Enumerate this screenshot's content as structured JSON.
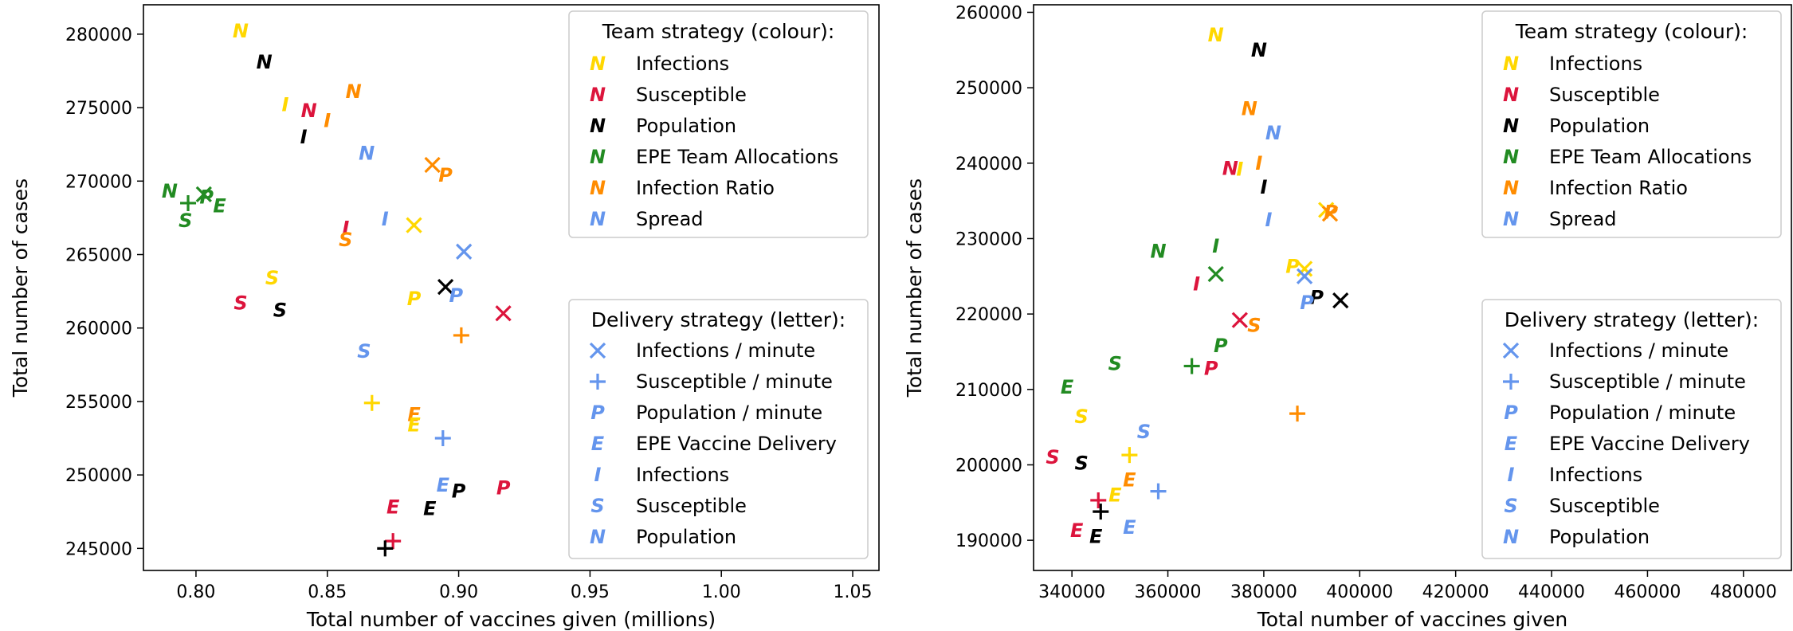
{
  "colors": {
    "Infections": "#ffd700",
    "Susceptible": "#dc143c",
    "Population": "#000000",
    "EPE Team Allocations": "#228b22",
    "Infection Ratio": "#ff8c00",
    "Spread": "#6495ed"
  },
  "legend_team": {
    "title": "Team strategy (colour):",
    "symbol": "N",
    "entries": [
      {
        "label": "Infections",
        "color": "#ffd700"
      },
      {
        "label": "Susceptible",
        "color": "#dc143c"
      },
      {
        "label": "Population",
        "color": "#000000"
      },
      {
        "label": "EPE Team Allocations",
        "color": "#228b22"
      },
      {
        "label": "Infection Ratio",
        "color": "#ff8c00"
      },
      {
        "label": "Spread",
        "color": "#6495ed"
      }
    ]
  },
  "legend_delivery": {
    "title": "Delivery strategy (letter):",
    "color": "#6495ed",
    "entries": [
      {
        "label": "Infections / minute",
        "marker": "x"
      },
      {
        "label": "Susceptible / minute",
        "marker": "+"
      },
      {
        "label": "Population / minute",
        "marker": "P"
      },
      {
        "label": "EPE Vaccine Delivery",
        "marker": "E"
      },
      {
        "label": "Infections",
        "marker": "I"
      },
      {
        "label": "Susceptible",
        "marker": "S"
      },
      {
        "label": "Population",
        "marker": "N"
      }
    ]
  },
  "chart_data": [
    {
      "type": "scatter",
      "title": "",
      "xlabel": "Total number of vaccines given (millions)",
      "ylabel": "Total number of cases",
      "xlim": [
        0.78,
        1.06
      ],
      "ylim": [
        243500,
        282000
      ],
      "xticks": [
        0.8,
        0.85,
        0.9,
        0.95,
        1.0,
        1.05
      ],
      "xtick_labels": [
        "0.80",
        "0.85",
        "0.90",
        "0.95",
        "1.00",
        "1.05"
      ],
      "yticks": [
        245000,
        250000,
        255000,
        260000,
        265000,
        270000,
        275000,
        280000
      ],
      "ytick_labels": [
        "245000",
        "250000",
        "255000",
        "260000",
        "265000",
        "270000",
        "275000",
        "280000"
      ],
      "points": [
        {
          "x": 0.817,
          "y": 280200,
          "team": "Infections",
          "m": "N"
        },
        {
          "x": 0.826,
          "y": 278100,
          "team": "Population",
          "m": "N"
        },
        {
          "x": 0.834,
          "y": 275200,
          "team": "Infections",
          "m": "I"
        },
        {
          "x": 0.843,
          "y": 274800,
          "team": "Susceptible",
          "m": "N"
        },
        {
          "x": 0.85,
          "y": 274100,
          "team": "Infection Ratio",
          "m": "I"
        },
        {
          "x": 0.841,
          "y": 273000,
          "team": "Population",
          "m": "I"
        },
        {
          "x": 0.86,
          "y": 276100,
          "team": "Infection Ratio",
          "m": "N"
        },
        {
          "x": 0.865,
          "y": 271900,
          "team": "Spread",
          "m": "N"
        },
        {
          "x": 0.79,
          "y": 269300,
          "team": "EPE Team Allocations",
          "m": "N"
        },
        {
          "x": 0.797,
          "y": 268500,
          "team": "EPE Team Allocations",
          "m": "+"
        },
        {
          "x": 0.803,
          "y": 269100,
          "team": "EPE Team Allocations",
          "m": "x"
        },
        {
          "x": 0.804,
          "y": 268900,
          "team": "EPE Team Allocations",
          "m": "P"
        },
        {
          "x": 0.809,
          "y": 268300,
          "team": "EPE Team Allocations",
          "m": "E"
        },
        {
          "x": 0.796,
          "y": 267300,
          "team": "EPE Team Allocations",
          "m": "S"
        },
        {
          "x": 0.89,
          "y": 271100,
          "team": "Infection Ratio",
          "m": "x"
        },
        {
          "x": 0.895,
          "y": 270400,
          "team": "Infection Ratio",
          "m": "P"
        },
        {
          "x": 0.857,
          "y": 266800,
          "team": "Susceptible",
          "m": "I"
        },
        {
          "x": 0.857,
          "y": 266000,
          "team": "Infection Ratio",
          "m": "S"
        },
        {
          "x": 0.872,
          "y": 267400,
          "team": "Spread",
          "m": "I"
        },
        {
          "x": 0.883,
          "y": 267000,
          "team": "Infections",
          "m": "x"
        },
        {
          "x": 0.902,
          "y": 265200,
          "team": "Spread",
          "m": "x"
        },
        {
          "x": 0.829,
          "y": 263400,
          "team": "Infections",
          "m": "S"
        },
        {
          "x": 0.817,
          "y": 261700,
          "team": "Susceptible",
          "m": "S"
        },
        {
          "x": 0.832,
          "y": 261200,
          "team": "Population",
          "m": "S"
        },
        {
          "x": 0.895,
          "y": 262800,
          "team": "Population",
          "m": "x"
        },
        {
          "x": 0.899,
          "y": 262200,
          "team": "Spread",
          "m": "P"
        },
        {
          "x": 0.883,
          "y": 262000,
          "team": "Infections",
          "m": "P"
        },
        {
          "x": 0.917,
          "y": 261000,
          "team": "Susceptible",
          "m": "x"
        },
        {
          "x": 0.901,
          "y": 259500,
          "team": "Infection Ratio",
          "m": "+"
        },
        {
          "x": 0.864,
          "y": 258400,
          "team": "Spread",
          "m": "S"
        },
        {
          "x": 0.867,
          "y": 254900,
          "team": "Infections",
          "m": "+"
        },
        {
          "x": 0.883,
          "y": 254100,
          "team": "Infection Ratio",
          "m": "E"
        },
        {
          "x": 0.883,
          "y": 253400,
          "team": "Infections",
          "m": "E"
        },
        {
          "x": 0.894,
          "y": 252500,
          "team": "Spread",
          "m": "+"
        },
        {
          "x": 0.894,
          "y": 249300,
          "team": "Spread",
          "m": "E"
        },
        {
          "x": 0.9,
          "y": 248900,
          "team": "Population",
          "m": "P"
        },
        {
          "x": 0.917,
          "y": 249100,
          "team": "Susceptible",
          "m": "P"
        },
        {
          "x": 0.875,
          "y": 247800,
          "team": "Susceptible",
          "m": "E"
        },
        {
          "x": 0.889,
          "y": 247700,
          "team": "Population",
          "m": "E"
        },
        {
          "x": 0.875,
          "y": 245500,
          "team": "Susceptible",
          "m": "+"
        },
        {
          "x": 0.872,
          "y": 245000,
          "team": "Population",
          "m": "+"
        }
      ]
    },
    {
      "type": "scatter",
      "title": "",
      "xlabel": "Total number of vaccines given",
      "ylabel": "Total number of cases",
      "xlim": [
        332000,
        490000
      ],
      "ylim": [
        186000,
        261000
      ],
      "xticks": [
        340000,
        360000,
        380000,
        400000,
        420000,
        440000,
        460000,
        480000
      ],
      "xtick_labels": [
        "340000",
        "360000",
        "380000",
        "400000",
        "420000",
        "440000",
        "460000",
        "480000"
      ],
      "yticks": [
        190000,
        200000,
        210000,
        220000,
        230000,
        240000,
        250000,
        260000
      ],
      "ytick_labels": [
        "190000",
        "200000",
        "210000",
        "220000",
        "230000",
        "240000",
        "250000",
        "260000"
      ],
      "points": [
        {
          "x": 370000,
          "y": 257000,
          "team": "Infections",
          "m": "N"
        },
        {
          "x": 379000,
          "y": 255000,
          "team": "Population",
          "m": "N"
        },
        {
          "x": 377000,
          "y": 247200,
          "team": "Infection Ratio",
          "m": "N"
        },
        {
          "x": 382000,
          "y": 244000,
          "team": "Spread",
          "m": "N"
        },
        {
          "x": 379000,
          "y": 240000,
          "team": "Infection Ratio",
          "m": "I"
        },
        {
          "x": 373000,
          "y": 239300,
          "team": "Susceptible",
          "m": "N"
        },
        {
          "x": 375000,
          "y": 239200,
          "team": "Infections",
          "m": "I"
        },
        {
          "x": 380000,
          "y": 236800,
          "team": "Population",
          "m": "I"
        },
        {
          "x": 393000,
          "y": 233800,
          "team": "Infections",
          "m": "x"
        },
        {
          "x": 394000,
          "y": 233500,
          "team": "Infection Ratio",
          "m": "P"
        },
        {
          "x": 393800,
          "y": 233300,
          "team": "Infection Ratio",
          "m": "x"
        },
        {
          "x": 381000,
          "y": 232500,
          "team": "Spread",
          "m": "I"
        },
        {
          "x": 370000,
          "y": 229000,
          "team": "EPE Team Allocations",
          "m": "I"
        },
        {
          "x": 358000,
          "y": 228300,
          "team": "EPE Team Allocations",
          "m": "N"
        },
        {
          "x": 386000,
          "y": 226300,
          "team": "Infections",
          "m": "P"
        },
        {
          "x": 388500,
          "y": 226000,
          "team": "Infections",
          "m": "x"
        },
        {
          "x": 370000,
          "y": 225300,
          "team": "EPE Team Allocations",
          "m": "x"
        },
        {
          "x": 388500,
          "y": 225000,
          "team": "Spread",
          "m": "x"
        },
        {
          "x": 366000,
          "y": 224000,
          "team": "Susceptible",
          "m": "I"
        },
        {
          "x": 391000,
          "y": 222200,
          "team": "Population",
          "m": "P"
        },
        {
          "x": 396000,
          "y": 221800,
          "team": "Population",
          "m": "x"
        },
        {
          "x": 389000,
          "y": 221500,
          "team": "Spread",
          "m": "P"
        },
        {
          "x": 375000,
          "y": 219200,
          "team": "Susceptible",
          "m": "x"
        },
        {
          "x": 378000,
          "y": 218500,
          "team": "Infection Ratio",
          "m": "S"
        },
        {
          "x": 371000,
          "y": 215800,
          "team": "EPE Team Allocations",
          "m": "P"
        },
        {
          "x": 349000,
          "y": 213400,
          "team": "EPE Team Allocations",
          "m": "S"
        },
        {
          "x": 365000,
          "y": 213100,
          "team": "EPE Team Allocations",
          "m": "+"
        },
        {
          "x": 369000,
          "y": 212800,
          "team": "Susceptible",
          "m": "P"
        },
        {
          "x": 339000,
          "y": 210300,
          "team": "EPE Team Allocations",
          "m": "E"
        },
        {
          "x": 387000,
          "y": 206800,
          "team": "Infection Ratio",
          "m": "+"
        },
        {
          "x": 342000,
          "y": 206400,
          "team": "Infections",
          "m": "S"
        },
        {
          "x": 355000,
          "y": 204400,
          "team": "Spread",
          "m": "S"
        },
        {
          "x": 352000,
          "y": 201300,
          "team": "Infections",
          "m": "+"
        },
        {
          "x": 336000,
          "y": 201000,
          "team": "Susceptible",
          "m": "S"
        },
        {
          "x": 342000,
          "y": 200200,
          "team": "Population",
          "m": "S"
        },
        {
          "x": 352000,
          "y": 198000,
          "team": "Infection Ratio",
          "m": "E"
        },
        {
          "x": 358000,
          "y": 196500,
          "team": "Spread",
          "m": "+"
        },
        {
          "x": 349000,
          "y": 196000,
          "team": "Infections",
          "m": "E"
        },
        {
          "x": 345500,
          "y": 195300,
          "team": "Susceptible",
          "m": "+"
        },
        {
          "x": 346000,
          "y": 193800,
          "team": "Population",
          "m": "+"
        },
        {
          "x": 352000,
          "y": 191700,
          "team": "Spread",
          "m": "E"
        },
        {
          "x": 341000,
          "y": 191300,
          "team": "Susceptible",
          "m": "E"
        },
        {
          "x": 345000,
          "y": 190500,
          "team": "Population",
          "m": "E"
        }
      ]
    }
  ]
}
